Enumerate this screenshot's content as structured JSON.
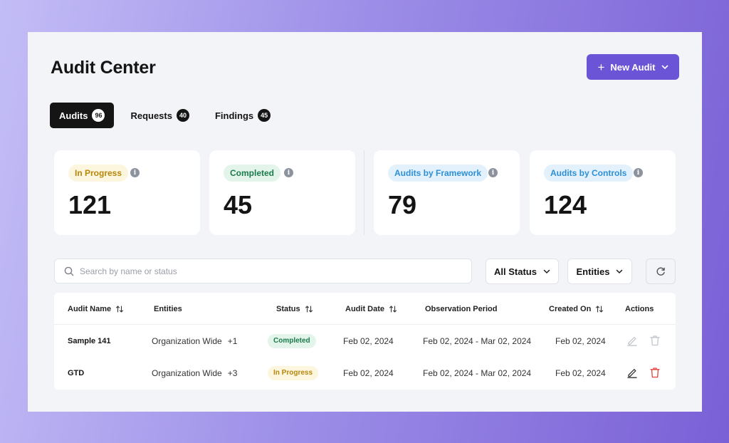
{
  "page": {
    "title": "Audit Center"
  },
  "header": {
    "new_audit_label": "New Audit"
  },
  "tabs": [
    {
      "label": "Audits",
      "count": "96",
      "active": true
    },
    {
      "label": "Requests",
      "count": "40",
      "active": false
    },
    {
      "label": "Findings",
      "count": "45",
      "active": false
    }
  ],
  "stats": [
    {
      "label": "In Progress",
      "value": "121",
      "label_color": "#b7860b",
      "label_bg": "#fdf6df"
    },
    {
      "label": "Completed",
      "value": "45",
      "label_color": "#1c7a4b",
      "label_bg": "#e3f5ea"
    },
    {
      "label": "Audits by Framework",
      "value": "79",
      "label_color": "#2d8fd6",
      "label_bg": "#e2f1fc"
    },
    {
      "label": "Audits by Controls",
      "value": "124",
      "label_color": "#2d8fd6",
      "label_bg": "#e2f1fc"
    }
  ],
  "search": {
    "placeholder": "Search by name or status",
    "value": ""
  },
  "filters": {
    "status_label": "All Status",
    "entities_label": "Entities"
  },
  "table": {
    "columns": {
      "audit_name": "Audit Name",
      "entities": "Entities",
      "status": "Status",
      "audit_date": "Audit Date",
      "observation_period": "Observation Period",
      "created_on": "Created On",
      "actions": "Actions"
    },
    "rows": [
      {
        "audit_name": "Sample 141",
        "entities": "Organization Wide",
        "entities_extra": "+1",
        "status": "Completed",
        "audit_date": "Feb 02, 2024",
        "observation_period": "Feb 02, 2024 - Mar 02, 2024",
        "created_on": "Feb 02, 2024"
      },
      {
        "audit_name": "GTD",
        "entities": "Organization Wide",
        "entities_extra": "+3",
        "status": "In Progress",
        "audit_date": "Feb 02, 2024",
        "observation_period": "Feb 02, 2024 - Mar 02, 2024",
        "created_on": "Feb 02, 2024"
      }
    ]
  },
  "colors": {
    "accent": "#6b55d6",
    "completed_text": "#1c7a4b",
    "completed_bg": "#e3f5ea",
    "in_progress_text": "#b7860b",
    "in_progress_bg": "#fdf6df",
    "delete_active": "#e0443e"
  },
  "icons": {
    "new_audit": "plus-icon",
    "dropdown": "chevron-down-icon",
    "info": "info-icon",
    "search": "search-icon",
    "sort": "sort-icon",
    "refresh": "refresh-icon",
    "edit": "edit-icon",
    "delete": "trash-icon"
  }
}
